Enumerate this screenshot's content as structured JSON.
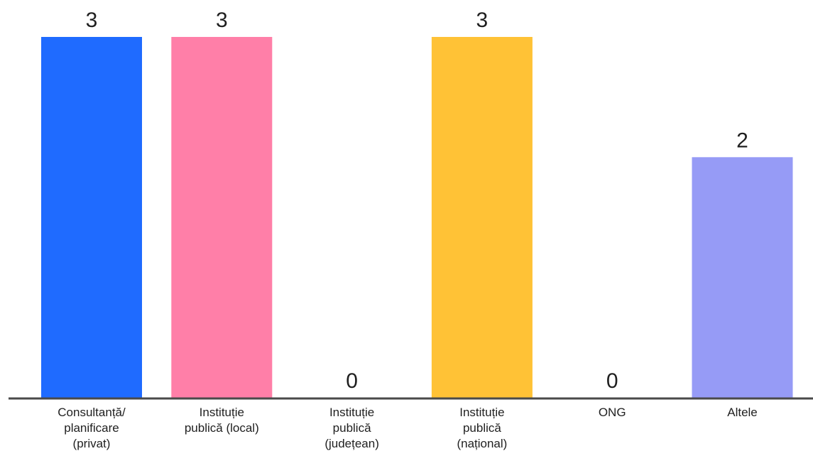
{
  "chart_data": {
    "type": "bar",
    "categories": [
      [
        "Consultanță/",
        "planificare",
        "(privat)"
      ],
      [
        "Instituție",
        "publică (local)"
      ],
      [
        "Instituție",
        "publică",
        "(județean)"
      ],
      [
        "Instituție",
        "publică",
        "(național)"
      ],
      [
        "ONG"
      ],
      [
        "Altele"
      ]
    ],
    "values": [
      3,
      3,
      0,
      3,
      0,
      2
    ],
    "colors": [
      "#1f6bff",
      "#ff7fa8",
      "#ff7fa8",
      "#ffc236",
      "#ffc236",
      "#969bf6"
    ],
    "ylim": [
      0,
      3
    ],
    "grid": false,
    "title": "",
    "xlabel": "",
    "ylabel": ""
  }
}
